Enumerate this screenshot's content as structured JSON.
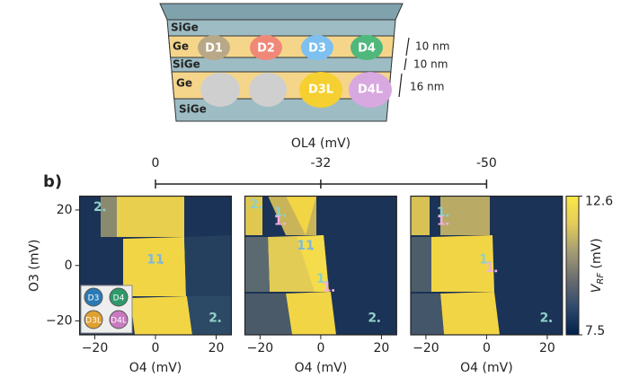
{
  "schematic": {
    "layers": [
      "SiGe",
      "Ge",
      "SiGe",
      "Ge",
      "SiGe"
    ],
    "dots": [
      "D1",
      "D2",
      "D3",
      "D4",
      "D3L",
      "D4L"
    ],
    "thickness": [
      "10 nm",
      "10 nm",
      "16 nm"
    ]
  },
  "panel_label": "b)",
  "top_axis": {
    "label": "OL4 (mV)",
    "ticks": [
      0,
      -32,
      -50
    ]
  },
  "legend": [
    "D3",
    "D4",
    "D3L",
    "D4L"
  ],
  "colorbar": {
    "label_main": "V",
    "label_sub": "RF",
    "label_unit": " (mV)",
    "lim": [
      7.5,
      12.6
    ],
    "ticks": [
      7.5,
      12.6
    ],
    "colors": [
      "#00204c",
      "#2f4a6d",
      "#6b6d6f",
      "#a59c74",
      "#e3cb5a",
      "#fde945"
    ]
  },
  "chart_data": [
    {
      "type": "heatmap",
      "xlabel": "O4 (mV)",
      "ylabel": "O3 (mV)",
      "xlim": [
        -25,
        25
      ],
      "ylim": [
        -25,
        25
      ],
      "xticks": [
        {
          "value": -20,
          "label": "−20"
        },
        0,
        20
      ],
      "yticks": [
        20,
        0,
        {
          "value": -20,
          "label": "−20"
        }
      ],
      "annotations": [
        {
          "text": "2",
          "x": -19,
          "y": 21,
          "color": "#8fd0c8"
        },
        {
          "text": "11",
          "x": 0,
          "y": 2,
          "color": "#7fb8d8"
        },
        {
          "text": "2",
          "x": 19,
          "y": -19,
          "color": "#8fd0c8"
        }
      ]
    },
    {
      "type": "heatmap",
      "xlabel": "O4 (mV)",
      "xlim": [
        -25,
        25
      ],
      "ylim": [
        -25,
        25
      ],
      "xticks": [
        {
          "value": -20,
          "label": "−20"
        },
        0,
        20
      ],
      "annotations": [
        {
          "text": "2",
          "x": -22,
          "y": 22,
          "color": "#8fd0c8"
        },
        {
          "text": "1",
          "x": -14,
          "y": 19,
          "color": "#8fd0c8"
        },
        {
          "text": "1",
          "x": -14,
          "y": 16,
          "color": "#f0b0e0"
        },
        {
          "text": "11",
          "x": -5,
          "y": 7,
          "color": "#7fb8d8"
        },
        {
          "text": "1",
          "x": 0,
          "y": -5,
          "color": "#8fd0c8"
        },
        {
          "text": "1",
          "x": 2,
          "y": -8,
          "color": "#f0b0e0"
        },
        {
          "text": "2",
          "x": 17,
          "y": -19,
          "color": "#8fd0c8"
        }
      ]
    },
    {
      "type": "heatmap",
      "xlabel": "O4 (mV)",
      "xlim": [
        -25,
        25
      ],
      "ylim": [
        -25,
        25
      ],
      "xticks": [
        {
          "value": -20,
          "label": "−20"
        },
        0,
        20
      ],
      "annotations": [
        {
          "text": "1",
          "x": -15,
          "y": 19,
          "color": "#8fd0c8"
        },
        {
          "text": "1",
          "x": -15,
          "y": 16,
          "color": "#f0b0e0"
        },
        {
          "text": "1",
          "x": -1,
          "y": 2,
          "color": "#8fd0c8"
        },
        {
          "text": "1",
          "x": 1,
          "y": -1,
          "color": "#f0b0e0"
        },
        {
          "text": "2",
          "x": 19,
          "y": -19,
          "color": "#8fd0c8"
        }
      ]
    }
  ]
}
